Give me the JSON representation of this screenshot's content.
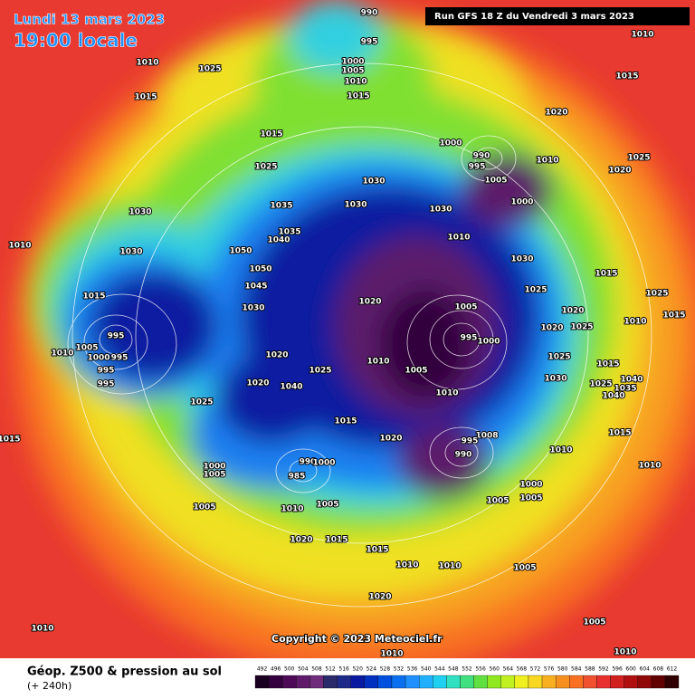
{
  "header": {
    "date": "Lundi 13 mars 2023",
    "time": "19:00 locale",
    "run": "Run GFS 18 Z du Vendredi 3 mars 2023"
  },
  "map": {
    "isobar_labels": [
      990,
      995,
      1010,
      1025,
      1000,
      1005,
      1010,
      1015,
      1015,
      1010,
      1015,
      1020,
      1015,
      1000,
      990,
      995,
      1005,
      1010,
      1020,
      1025,
      1025,
      1030,
      1030,
      1035,
      1030,
      1030,
      1000,
      1010,
      1035,
      1040,
      1050,
      1030,
      1010,
      1050,
      1045,
      1030,
      1015,
      1030,
      1025,
      1015,
      1025,
      1020,
      1025,
      1020,
      1010,
      1015,
      1020,
      1005,
      995,
      995,
      1000,
      1010,
      1005,
      1000,
      995,
      995,
      995,
      1020,
      1025,
      1010,
      1005,
      1030,
      1025,
      1015,
      1040,
      1025,
      1035,
      1040,
      1020,
      1040,
      1010,
      1025,
      1015,
      1015,
      1020,
      1008,
      995,
      990,
      1010,
      1015,
      1010,
      1000,
      1005,
      990,
      1000,
      985,
      1005,
      1010,
      1005,
      1005,
      1000,
      1005,
      1020,
      1015,
      1015,
      1010,
      1010,
      1005,
      1020,
      1005,
      1010,
      1010,
      1010
    ],
    "copyright": "Copyright © 2023 Meteociel.fr"
  },
  "legend": {
    "title": "Géop. Z500 & pression au sol",
    "lead": "(+ 240h)",
    "ticks": [
      492,
      496,
      500,
      504,
      508,
      512,
      516,
      520,
      524,
      528,
      532,
      536,
      540,
      544,
      548,
      552,
      556,
      560,
      564,
      568,
      572,
      576,
      580,
      584,
      588,
      592,
      596,
      600,
      604,
      608,
      612
    ],
    "colors": [
      "#1a0020",
      "#33003d",
      "#4d0a57",
      "#5f1a6a",
      "#6e2c7a",
      "#2a2a6a",
      "#1e2a8a",
      "#0a1aa0",
      "#0030c0",
      "#0050e0",
      "#0a70f0",
      "#1e90ff",
      "#20b0ff",
      "#20d0f0",
      "#30e0c0",
      "#40e080",
      "#60e040",
      "#90e820",
      "#c0f020",
      "#f0f020",
      "#f8d820",
      "#f8b020",
      "#f89020",
      "#f87020",
      "#f05030",
      "#e83030",
      "#d02020",
      "#b01010",
      "#900808",
      "#600000",
      "#300000"
    ]
  }
}
